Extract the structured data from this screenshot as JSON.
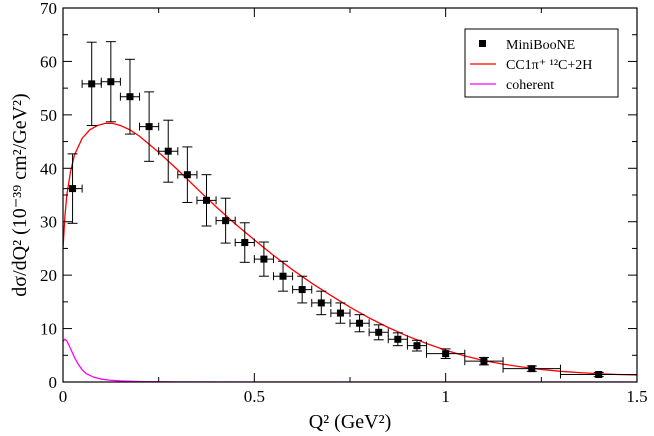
{
  "chart_data": {
    "type": "line",
    "xlabel": "Q² (GeV²)",
    "ylabel": "dσ/dQ² (10⁻³⁹ cm²/GeV²)",
    "xlim": [
      0,
      1.5
    ],
    "ylim": [
      0,
      70
    ],
    "xticks": [
      0,
      0.5,
      1,
      1.5
    ],
    "xtick_labels": [
      "0",
      "0.5",
      "1",
      "1.5"
    ],
    "yticks": [
      0,
      10,
      20,
      30,
      40,
      50,
      60,
      70
    ],
    "ytick_labels": [
      "0",
      "10",
      "20",
      "30",
      "40",
      "50",
      "60",
      "70"
    ],
    "legend_position": "top-right",
    "series": [
      {
        "name": "MiniBooNE",
        "style": "points",
        "color": "#000000",
        "points": [
          {
            "x": 0.025,
            "y": 36.2,
            "xerr": 0.025,
            "yerr": 6.5
          },
          {
            "x": 0.075,
            "y": 55.8,
            "xerr": 0.025,
            "yerr": 7.8
          },
          {
            "x": 0.125,
            "y": 56.2,
            "xerr": 0.025,
            "yerr": 7.5
          },
          {
            "x": 0.175,
            "y": 53.4,
            "xerr": 0.025,
            "yerr": 7.0
          },
          {
            "x": 0.225,
            "y": 47.8,
            "xerr": 0.025,
            "yerr": 6.5
          },
          {
            "x": 0.275,
            "y": 43.2,
            "xerr": 0.025,
            "yerr": 5.8
          },
          {
            "x": 0.325,
            "y": 38.8,
            "xerr": 0.025,
            "yerr": 5.2
          },
          {
            "x": 0.375,
            "y": 34.0,
            "xerr": 0.025,
            "yerr": 4.8
          },
          {
            "x": 0.425,
            "y": 30.2,
            "xerr": 0.025,
            "yerr": 4.2
          },
          {
            "x": 0.475,
            "y": 26.1,
            "xerr": 0.025,
            "yerr": 3.7
          },
          {
            "x": 0.525,
            "y": 23.0,
            "xerr": 0.025,
            "yerr": 3.2
          },
          {
            "x": 0.575,
            "y": 19.8,
            "xerr": 0.025,
            "yerr": 2.8
          },
          {
            "x": 0.625,
            "y": 17.3,
            "xerr": 0.025,
            "yerr": 2.5
          },
          {
            "x": 0.675,
            "y": 14.8,
            "xerr": 0.025,
            "yerr": 2.2
          },
          {
            "x": 0.725,
            "y": 12.9,
            "xerr": 0.025,
            "yerr": 1.9
          },
          {
            "x": 0.775,
            "y": 11.0,
            "xerr": 0.025,
            "yerr": 1.6
          },
          {
            "x": 0.825,
            "y": 9.3,
            "xerr": 0.025,
            "yerr": 1.4
          },
          {
            "x": 0.875,
            "y": 8.0,
            "xerr": 0.025,
            "yerr": 1.2
          },
          {
            "x": 0.925,
            "y": 6.8,
            "xerr": 0.025,
            "yerr": 1.0
          },
          {
            "x": 1.0,
            "y": 5.3,
            "xerr": 0.05,
            "yerr": 0.9
          },
          {
            "x": 1.1,
            "y": 3.9,
            "xerr": 0.05,
            "yerr": 0.7
          },
          {
            "x": 1.225,
            "y": 2.5,
            "xerr": 0.075,
            "yerr": 0.5
          },
          {
            "x": 1.4,
            "y": 1.4,
            "xerr": 0.1,
            "yerr": 0.4
          }
        ]
      },
      {
        "name": "CC1π⁺ ¹²C+2H",
        "style": "line",
        "color": "#ff0000",
        "x": [
          0.0,
          0.005,
          0.01,
          0.02,
          0.03,
          0.05,
          0.07,
          0.09,
          0.11,
          0.13,
          0.15,
          0.175,
          0.2,
          0.25,
          0.3,
          0.35,
          0.4,
          0.45,
          0.5,
          0.55,
          0.6,
          0.65,
          0.7,
          0.75,
          0.8,
          0.85,
          0.9,
          0.95,
          1.0,
          1.05,
          1.1,
          1.15,
          1.2,
          1.25,
          1.3,
          1.35,
          1.4,
          1.45,
          1.5
        ],
        "y": [
          25.0,
          31.0,
          35.0,
          39.5,
          42.5,
          45.6,
          47.2,
          48.0,
          48.4,
          48.4,
          48.0,
          47.2,
          46.0,
          43.0,
          39.7,
          36.2,
          32.8,
          29.6,
          26.6,
          23.7,
          21.0,
          18.5,
          16.2,
          14.0,
          12.0,
          10.2,
          8.6,
          7.2,
          5.95,
          4.9,
          4.0,
          3.35,
          2.8,
          2.35,
          2.0,
          1.75,
          1.55,
          1.4,
          1.3
        ]
      },
      {
        "name": "coherent",
        "style": "line",
        "color": "#ff00ff",
        "x": [
          0.0,
          0.005,
          0.01,
          0.02,
          0.03,
          0.04,
          0.05,
          0.06,
          0.08,
          0.1,
          0.12,
          0.15,
          0.2,
          0.3,
          0.5,
          0.8,
          1.2,
          1.5
        ],
        "y": [
          7.6,
          8.0,
          7.7,
          6.2,
          4.6,
          3.3,
          2.3,
          1.6,
          0.9,
          0.55,
          0.35,
          0.2,
          0.08,
          0.02,
          0.0,
          0.0,
          0.0,
          0.0
        ]
      }
    ]
  }
}
